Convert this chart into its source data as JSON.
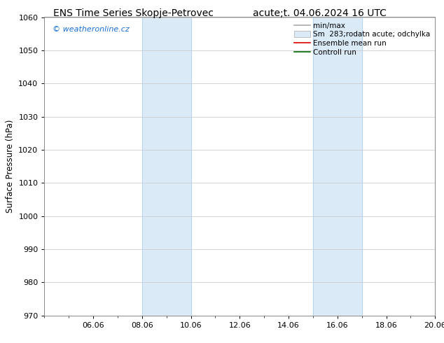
{
  "title_left": "ENS Time Series Skopje-Petrovec",
  "title_right": "acute;t. 04.06.2024 16 UTC",
  "ylabel": "Surface Pressure (hPa)",
  "ylim": [
    970,
    1060
  ],
  "yticks": [
    970,
    980,
    990,
    1000,
    1010,
    1020,
    1030,
    1040,
    1050,
    1060
  ],
  "xlim": [
    0.0,
    16.0
  ],
  "xtick_positions": [
    2,
    4,
    6,
    8,
    10,
    12,
    14,
    16
  ],
  "xtick_labels": [
    "06.06",
    "08.06",
    "10.06",
    "12.06",
    "14.06",
    "16.06",
    "18.06",
    "20.06"
  ],
  "shade_bands": [
    {
      "x_start": 4.0,
      "x_end": 6.0,
      "color": "#daeaf7"
    },
    {
      "x_start": 11.0,
      "x_end": 13.0,
      "color": "#daeaf7"
    }
  ],
  "band_edge_color": "#b8d4ec",
  "watermark_text": "© weatheronline.cz",
  "watermark_color": "#1a6fd4",
  "bg_color": "#ffffff",
  "grid_color": "#cccccc",
  "title_fontsize": 10,
  "tick_fontsize": 8,
  "ylabel_fontsize": 8.5,
  "legend_fontsize": 7.5,
  "spine_color": "#888888"
}
